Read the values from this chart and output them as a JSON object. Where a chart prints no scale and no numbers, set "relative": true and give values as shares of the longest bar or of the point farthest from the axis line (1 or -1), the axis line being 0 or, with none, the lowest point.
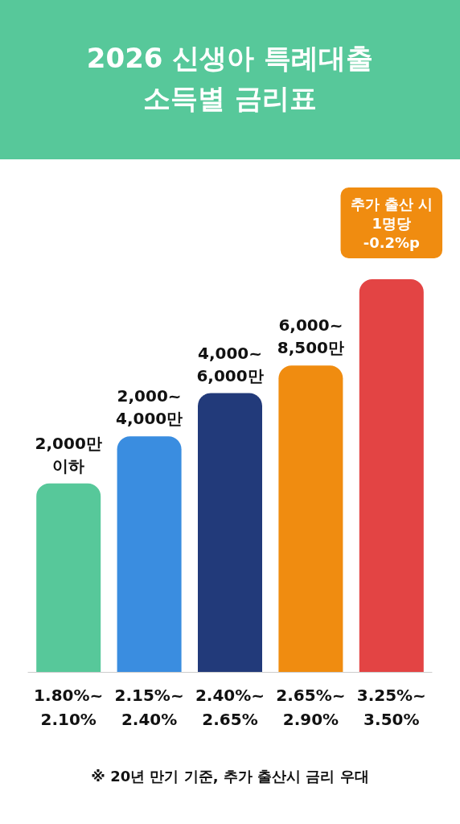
{
  "chart_data": {
    "type": "bar",
    "title": "2026 신생아 특례대출\n소득별 금리표",
    "categories": [
      "1.80%~\n2.10%",
      "2.15%~\n2.40%",
      "2.40%~\n2.65%",
      "2.65%~\n2.90%",
      "3.25%~\n3.50%"
    ],
    "values": [
      0.48,
      0.6,
      0.71,
      0.78,
      1
    ],
    "colors": [
      "#57c89a",
      "#3a8de0",
      "#223a7a",
      "#f08c10",
      "#e34444"
    ],
    "relative": true,
    "annotations": [
      {
        "text": "2,000만\n이하",
        "x": "1.80%~\n2.10%",
        "y": 0.48
      },
      {
        "text": "2,000~\n4,000만",
        "x": "2.15%~\n2.40%",
        "y": 0.6
      },
      {
        "text": "4,000~\n6,000만",
        "x": "2.40%~\n2.65%",
        "y": 0.71
      },
      {
        "text": "6,000~\n8,500만",
        "x": "2.65%~\n2.90%",
        "y": 0.78
      },
      {
        "text": "추가 출산 시\n1명당\n-0.2%p",
        "x": "3.25%~\n3.50%",
        "y": 1
      },
      "※ 20년 만기 기준, 추가 출산시 금리 우대"
    ]
  }
}
